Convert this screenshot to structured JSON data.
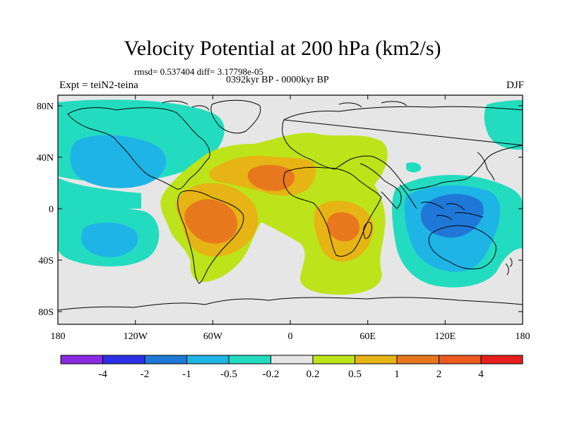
{
  "title": "Velocity Potential at 200 hPa (km2/s)",
  "stats": "rmsd= 0.537404 diff= 3.17798e-05",
  "period": "0392kyr BP - 0000kyr BP",
  "experiment": "Expt = teiN2-teina",
  "season": "DJF",
  "lat_labels": [
    "80N",
    "40N",
    "0",
    "40S",
    "80S"
  ],
  "lon_labels": [
    "180",
    "120W",
    "60W",
    "0",
    "60E",
    "120E",
    "180"
  ],
  "colorbar": {
    "labels": [
      "-4",
      "-2",
      "-1",
      "-0.5",
      "-0.2",
      "0.2",
      "0.5",
      "1",
      "2",
      "4"
    ],
    "colors": [
      "#8a2be2",
      "#2e2ee6",
      "#1f78d8",
      "#1fb4e6",
      "#23dcc0",
      "#e6e6e6",
      "#bde31a",
      "#e6b414",
      "#e8781e",
      "#ec5a1e",
      "#e61e1e"
    ]
  },
  "palette": {
    "neg_strong": "#1f78d8",
    "neg_mid": "#1fb4e6",
    "neg_weak": "#23dcc0",
    "neutral": "#e6e6e6",
    "pos_weak": "#bde31a",
    "pos_mid": "#e6b414",
    "pos_strong": "#e8781e"
  }
}
